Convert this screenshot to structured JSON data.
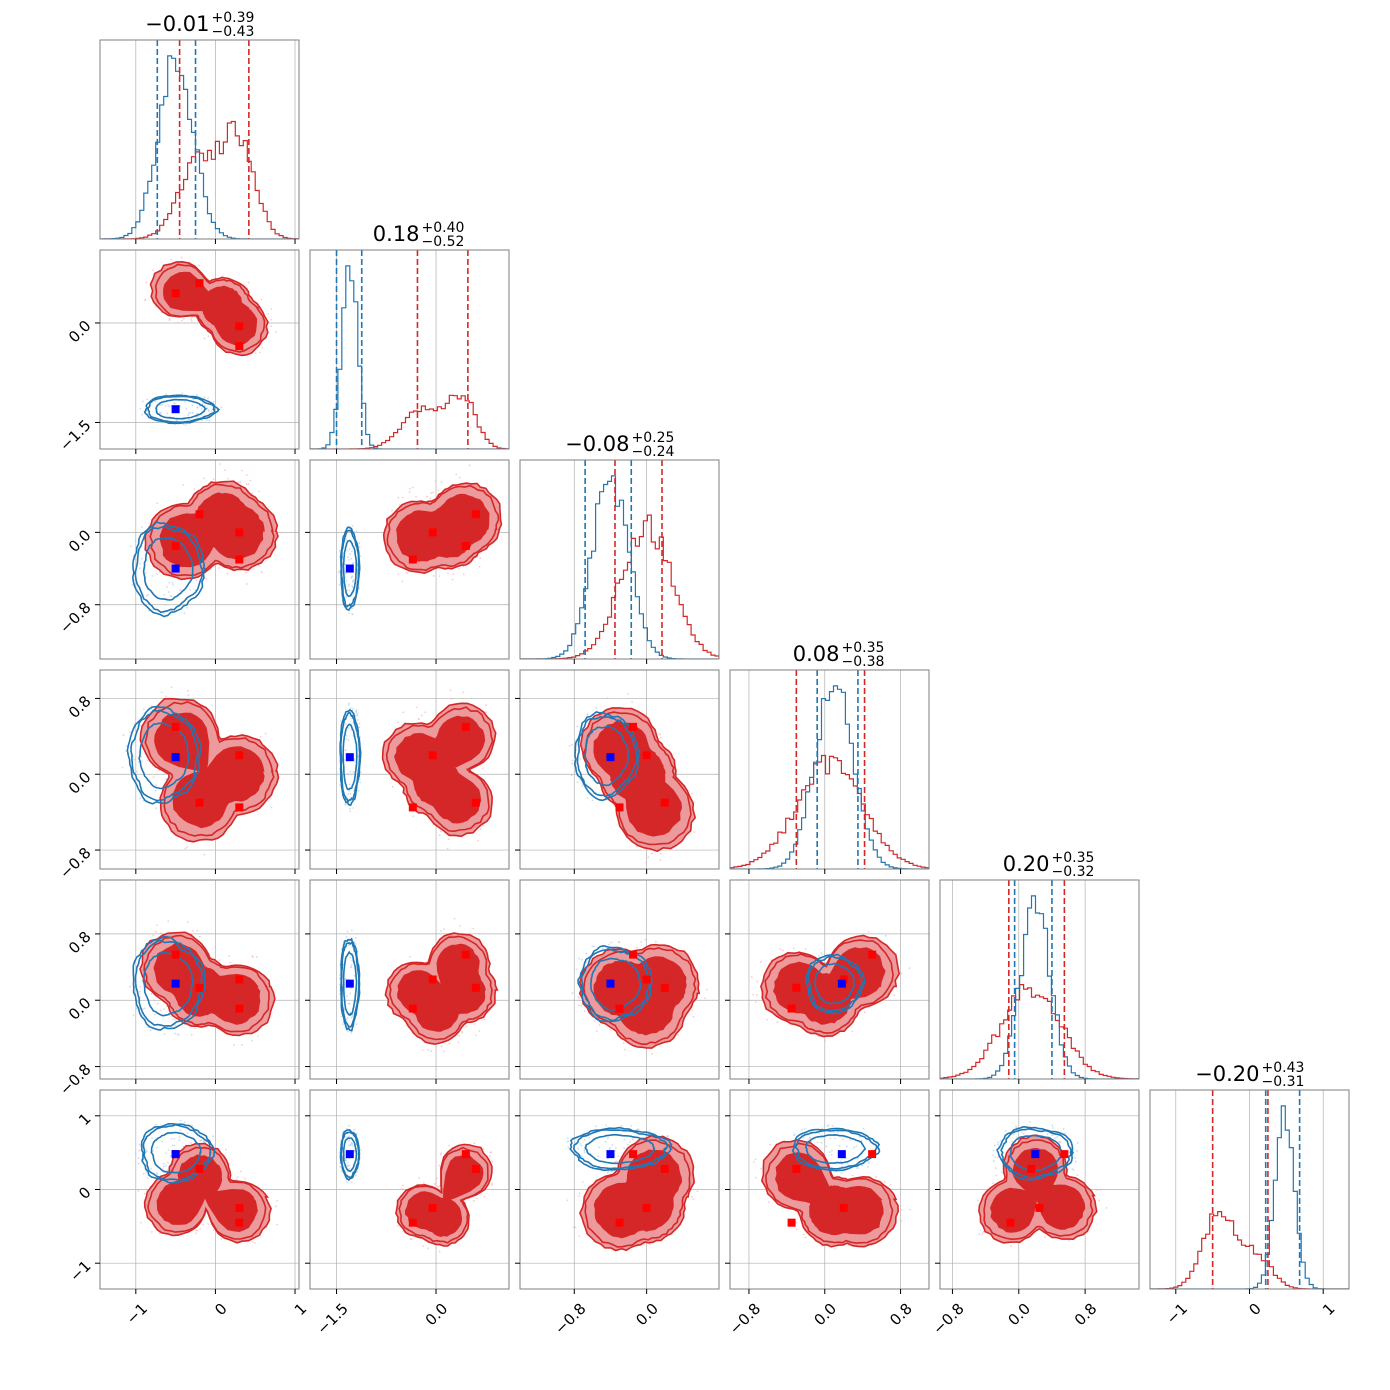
{
  "chart_data": {
    "type": "corner",
    "colors": {
      "red": "#d62728",
      "blue": "#1f77b4",
      "red_fill_outer": "#ec9a9b",
      "red_fill_inner": "#d62728",
      "marker_red": "#ff0000",
      "marker_blue": "#0000ff",
      "grid": "#b0b0b0"
    },
    "params": [
      {
        "range": [
          -1.45,
          1.05
        ],
        "ticks": [
          -1,
          0,
          1
        ],
        "tick_labels": [
          "−1",
          "0",
          "1"
        ],
        "title": {
          "main": "−0.01",
          "sup": "+0.39",
          "sub": "−0.43"
        },
        "blue_hist": {
          "mu": -0.5,
          "sigma": 0.22
        },
        "red_hist": {
          "comps": [
            [
              -0.2,
              0.25,
              0.5
            ],
            [
              0.3,
              0.2,
              0.6
            ]
          ]
        },
        "blue_lines": [
          -0.73,
          -0.25
        ],
        "red_lines": [
          -0.45,
          0.42
        ]
      },
      {
        "range": [
          -1.9,
          1.1
        ],
        "ticks": [
          -1.5,
          0.0
        ],
        "tick_labels": [
          "−1.5",
          "0.0"
        ],
        "title": {
          "main": "0.18",
          "sup": "+0.40",
          "sub": "−0.52"
        },
        "blue_hist": {
          "mu": -1.3,
          "sigma": 0.12
        },
        "red_hist": {
          "comps": [
            [
              -0.2,
              0.3,
              0.55
            ],
            [
              0.4,
              0.2,
              0.7
            ]
          ]
        },
        "blue_lines": [
          -1.5,
          -1.12
        ],
        "red_lines": [
          -0.28,
          0.48
        ]
      },
      {
        "range": [
          -1.4,
          0.8
        ],
        "ticks": [
          -0.8,
          0.0
        ],
        "tick_labels": [
          "−0.8",
          "0.0"
        ],
        "title": {
          "main": "−0.08",
          "sup": "+0.25",
          "sub": "−0.24"
        },
        "blue_hist": {
          "mu": -0.4,
          "sigma": 0.2
        },
        "red_hist": {
          "comps": [
            [
              0.0,
              0.28,
              0.8
            ]
          ]
        },
        "blue_lines": [
          -0.68,
          -0.17
        ],
        "red_lines": [
          -0.35,
          0.17
        ]
      },
      {
        "range": [
          -1.0,
          1.1
        ],
        "ticks": [
          -0.8,
          0.0,
          0.8
        ],
        "tick_labels": [
          "−0.8",
          "0.0",
          "0.8"
        ],
        "title": {
          "main": "0.08",
          "sup": "+0.35",
          "sub": "−0.38"
        },
        "blue_hist": {
          "mu": 0.1,
          "sigma": 0.2
        },
        "red_hist": {
          "comps": [
            [
              0.05,
              0.35,
              0.55
            ]
          ]
        },
        "blue_lines": [
          -0.08,
          0.35
        ],
        "red_lines": [
          -0.3,
          0.42
        ]
      },
      {
        "range": [
          -0.95,
          1.45
        ],
        "ticks": [
          -0.8,
          0.0,
          0.8
        ],
        "tick_labels": [
          "−0.8",
          "0.0",
          "0.8"
        ],
        "title": {
          "main": "0.20",
          "sup": "+0.35",
          "sub": "−0.32"
        },
        "blue_hist": {
          "mu": 0.2,
          "sigma": 0.18
        },
        "red_hist": {
          "comps": [
            [
              0.15,
              0.35,
              0.5
            ]
          ]
        },
        "blue_lines": [
          -0.05,
          0.4
        ],
        "red_lines": [
          -0.12,
          0.55
        ]
      },
      {
        "range": [
          -1.35,
          1.35
        ],
        "ticks": [
          -1,
          0,
          1
        ],
        "tick_labels": [
          "−1",
          "0",
          "1"
        ],
        "title": {
          "main": "−0.20",
          "sup": "+0.43",
          "sub": "−0.31"
        },
        "blue_hist": {
          "mu": 0.48,
          "sigma": 0.13
        },
        "red_hist": {
          "comps": [
            [
              -0.4,
              0.22,
              0.6
            ],
            [
              0.1,
              0.2,
              0.25
            ]
          ]
        },
        "blue_lines": [
          0.22,
          0.68
        ],
        "red_lines": [
          -0.5,
          0.25
        ]
      }
    ],
    "blue_markers": [
      -0.5,
      -1.3,
      -0.4,
      0.18,
      0.2,
      0.48
    ],
    "red_markers": [
      [
        -0.5,
        0.45,
        -0.15,
        0.5,
        0.55,
        0.48
      ],
      [
        -0.2,
        0.6,
        0.2,
        -0.3,
        0.15,
        0.28
      ],
      [
        0.3,
        -0.05,
        0.0,
        0.2,
        0.25,
        -0.25
      ],
      [
        0.3,
        -0.35,
        -0.3,
        -0.35,
        -0.1,
        -0.45
      ]
    ],
    "blue_ellipses": {
      "1,0": {
        "center": [
          -0.45,
          -1.3
        ],
        "radii": [
          0.45,
          0.21
        ]
      },
      "2,0": {
        "center": [
          -0.6,
          -0.4
        ],
        "radii": [
          0.45,
          0.5
        ]
      },
      "2,1": {
        "center": [
          -1.3,
          -0.4
        ],
        "radii": [
          0.14,
          0.45
        ]
      },
      "3,0": {
        "center": [
          -0.65,
          0.2
        ],
        "radii": [
          0.45,
          0.5
        ]
      },
      "3,1": {
        "center": [
          -1.3,
          0.18
        ],
        "radii": [
          0.15,
          0.5
        ]
      },
      "3,2": {
        "center": [
          -0.45,
          0.2
        ],
        "radii": [
          0.35,
          0.45
        ]
      },
      "4,0": {
        "center": [
          -0.6,
          0.2
        ],
        "radii": [
          0.45,
          0.55
        ]
      },
      "4,1": {
        "center": [
          -1.3,
          0.2
        ],
        "radii": [
          0.14,
          0.55
        ]
      },
      "4,2": {
        "center": [
          -0.35,
          0.2
        ],
        "radii": [
          0.4,
          0.45
        ]
      },
      "4,3": {
        "center": [
          0.1,
          0.2
        ],
        "radii": [
          0.3,
          0.35
        ]
      },
      "5,0": {
        "center": [
          -0.5,
          0.5
        ],
        "radii": [
          0.45,
          0.4
        ]
      },
      "5,1": {
        "center": [
          -1.3,
          0.48
        ],
        "radii": [
          0.14,
          0.33
        ]
      },
      "5,2": {
        "center": [
          -0.3,
          0.55
        ],
        "radii": [
          0.55,
          0.28
        ]
      },
      "5,3": {
        "center": [
          0.1,
          0.55
        ],
        "radii": [
          0.45,
          0.28
        ]
      },
      "5,4": {
        "center": [
          0.2,
          0.5
        ],
        "radii": [
          0.45,
          0.35
        ]
      }
    },
    "red_blobs": {
      "1,0": {
        "centers": [
          [
            -0.45,
            0.5
          ],
          [
            0.1,
            0.25
          ],
          [
            0.3,
            -0.05
          ]
        ],
        "radii": [
          0.38,
          0.4
        ]
      },
      "2,0": {
        "centers": [
          [
            -0.4,
            -0.1
          ],
          [
            0.1,
            0.15
          ],
          [
            0.3,
            0.0
          ]
        ],
        "radii": [
          0.38,
          0.5
        ]
      },
      "2,1": {
        "centers": [
          [
            -0.25,
            -0.05
          ],
          [
            0.2,
            0.0
          ],
          [
            0.45,
            0.15
          ]
        ],
        "radii": [
          0.4,
          0.5
        ]
      },
      "3,0": {
        "centers": [
          [
            -0.45,
            0.4
          ],
          [
            -0.2,
            -0.3
          ],
          [
            0.3,
            0.0
          ]
        ],
        "radii": [
          0.4,
          0.48
        ]
      },
      "3,1": {
        "centers": [
          [
            -0.3,
            0.2
          ],
          [
            0.0,
            -0.1
          ],
          [
            0.35,
            -0.3
          ],
          [
            0.4,
            0.4
          ]
        ],
        "radii": [
          0.35,
          0.45
        ]
      },
      "3,2": {
        "centers": [
          [
            -0.3,
            0.3
          ],
          [
            -0.1,
            0.0
          ],
          [
            0.1,
            -0.4
          ]
        ],
        "radii": [
          0.38,
          0.45
        ]
      },
      "3,3": {
        "centers": [
          [
            -0.3,
            0.2
          ],
          [
            0.1,
            0.1
          ],
          [
            0.4,
            0.3
          ]
        ],
        "radii": [
          0.35,
          0.35
        ]
      },
      "4,0": {
        "centers": [
          [
            -0.5,
            0.4
          ],
          [
            -0.2,
            0.1
          ],
          [
            0.3,
            0.0
          ]
        ],
        "radii": [
          0.38,
          0.48
        ]
      },
      "4,1": {
        "centers": [
          [
            -0.3,
            0.1
          ],
          [
            0.0,
            -0.15
          ],
          [
            0.35,
            0.45
          ],
          [
            0.45,
            0.1
          ]
        ],
        "radii": [
          0.35,
          0.45
        ]
      },
      "4,2": {
        "centers": [
          [
            -0.3,
            0.15
          ],
          [
            0.0,
            -0.1
          ],
          [
            0.15,
            0.2
          ]
        ],
        "radii": [
          0.42,
          0.48
        ]
      },
      "4,3": {
        "centers": [
          [
            -0.3,
            0.15
          ],
          [
            0.0,
            0.0
          ],
          [
            0.4,
            0.35
          ]
        ],
        "radii": [
          0.4,
          0.4
        ]
      },
      "5,0": {
        "centers": [
          [
            -0.5,
            -0.2
          ],
          [
            -0.2,
            0.2
          ],
          [
            0.3,
            -0.3
          ]
        ],
        "radii": [
          0.42,
          0.38
        ]
      },
      "5,1": {
        "centers": [
          [
            -0.2,
            -0.3
          ],
          [
            0.1,
            -0.4
          ],
          [
            0.45,
            0.25
          ]
        ],
        "radii": [
          0.38,
          0.38
        ]
      },
      "5,2": {
        "centers": [
          [
            -0.3,
            -0.3
          ],
          [
            0.0,
            -0.2
          ],
          [
            0.1,
            0.2
          ]
        ],
        "radii": [
          0.48,
          0.45
        ]
      },
      "5,3": {
        "centers": [
          [
            -0.3,
            0.2
          ],
          [
            0.1,
            -0.3
          ],
          [
            0.4,
            -0.3
          ]
        ],
        "radii": [
          0.4,
          0.42
        ]
      },
      "5,4": {
        "centers": [
          [
            -0.1,
            -0.3
          ],
          [
            0.2,
            0.3
          ],
          [
            0.55,
            -0.25
          ]
        ],
        "radii": [
          0.42,
          0.38
        ]
      }
    }
  }
}
